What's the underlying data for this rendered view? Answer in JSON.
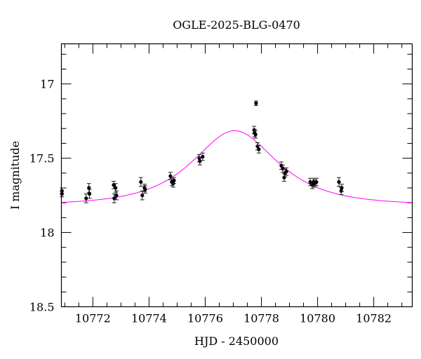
{
  "chart_data": {
    "type": "scatter",
    "title": "OGLE-2025-BLG-0470",
    "xlabel": "HJD - 2450000",
    "ylabel": "I magnitude",
    "xlim": [
      10770.88,
      10783.37
    ],
    "ylim": [
      18.5,
      16.73
    ],
    "y_inverted": true,
    "xticks": [
      "10772",
      "10774",
      "10776",
      "10778",
      "10780",
      "10782"
    ],
    "yticks": [
      "17",
      "17.5",
      "18",
      "18.5"
    ],
    "grid": false,
    "colors": {
      "points": "#000000",
      "model": "#ff00ff"
    },
    "series": [
      {
        "type": "scatter-errorbar",
        "x": [
          10770.9,
          10770.9,
          10771.76,
          10771.86,
          10771.88,
          10772.74,
          10772.76,
          10772.81,
          10772.84,
          10773.71,
          10773.76,
          10773.84,
          10773.86,
          10774.76,
          10774.81,
          10774.86,
          10774.89,
          10775.79,
          10775.81,
          10775.91,
          10777.81,
          10777.74,
          10777.79,
          10777.76,
          10777.86,
          10777.91,
          10778.71,
          10778.76,
          10778.81,
          10778.84,
          10778.89,
          10779.74,
          10779.81,
          10779.86,
          10779.89,
          10779.96,
          10780.76,
          10780.84,
          10780.86
        ],
        "y": [
          17.72,
          17.74,
          17.77,
          17.7,
          17.74,
          17.68,
          17.77,
          17.7,
          17.75,
          17.66,
          17.75,
          17.7,
          17.71,
          17.62,
          17.66,
          17.67,
          17.65,
          17.5,
          17.52,
          17.49,
          17.13,
          17.31,
          17.34,
          17.33,
          17.42,
          17.44,
          17.55,
          17.57,
          17.63,
          17.6,
          17.59,
          17.66,
          17.68,
          17.66,
          17.67,
          17.66,
          17.66,
          17.72,
          17.7
        ],
        "err": [
          0.02,
          0.02,
          0.03,
          0.03,
          0.03,
          0.025,
          0.03,
          0.03,
          0.03,
          0.03,
          0.03,
          0.025,
          0.025,
          0.025,
          0.025,
          0.025,
          0.02,
          0.025,
          0.025,
          0.025,
          0.015,
          0.025,
          0.025,
          0.025,
          0.025,
          0.025,
          0.025,
          0.025,
          0.025,
          0.025,
          0.025,
          0.025,
          0.025,
          0.025,
          0.025,
          0.025,
          0.03,
          0.025,
          0.025
        ]
      },
      {
        "type": "line",
        "role": "model"
      }
    ]
  }
}
